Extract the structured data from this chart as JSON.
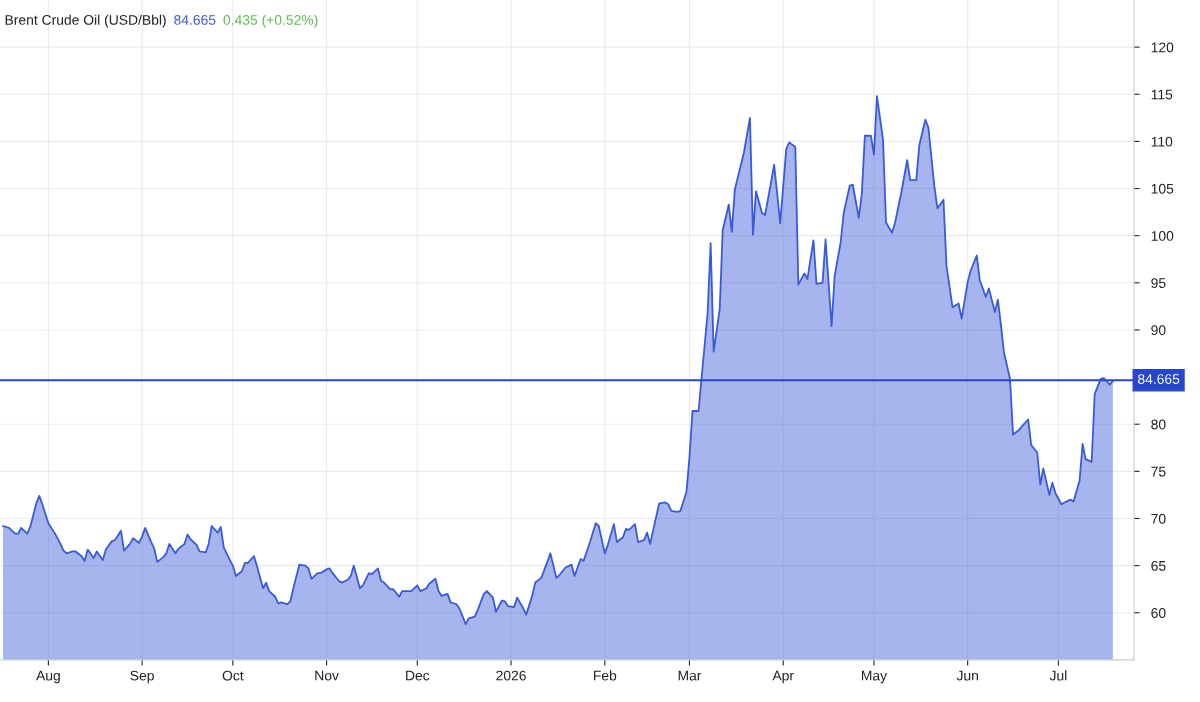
{
  "chart_data": {
    "type": "area",
    "title": "Brent Crude Oil (USD/Bbl)",
    "annotations": [
      "84.665",
      "0.435 (+0.52%)"
    ],
    "x": [
      "2025-07-17",
      "2025-07-19",
      "2025-07-21",
      "2025-07-22",
      "2025-07-23",
      "2025-07-25",
      "2025-07-26",
      "2025-07-28",
      "2025-07-29",
      "2025-07-30",
      "2025-08-01",
      "2025-08-03",
      "2025-08-05",
      "2025-08-06",
      "2025-08-07",
      "2025-08-09",
      "2025-08-10",
      "2025-08-12",
      "2025-08-13",
      "2025-08-14",
      "2025-08-16",
      "2025-08-17",
      "2025-08-19",
      "2025-08-20",
      "2025-08-22",
      "2025-08-23",
      "2025-08-25",
      "2025-08-26",
      "2025-08-28",
      "2025-08-29",
      "2025-08-31",
      "2025-09-01",
      "2025-09-02",
      "2025-09-04",
      "2025-09-05",
      "2025-09-06",
      "2025-09-08",
      "2025-09-09",
      "2025-09-10",
      "2025-09-12",
      "2025-09-13",
      "2025-09-15",
      "2025-09-16",
      "2025-09-17",
      "2025-09-19",
      "2025-09-20",
      "2025-09-22",
      "2025-09-23",
      "2025-09-24",
      "2025-09-26",
      "2025-09-27",
      "2025-09-28",
      "2025-09-30",
      "2025-10-01",
      "2025-10-02",
      "2025-10-04",
      "2025-10-05",
      "2025-10-06",
      "2025-10-08",
      "2025-10-09",
      "2025-10-11",
      "2025-10-12",
      "2025-10-13",
      "2025-10-15",
      "2025-10-16",
      "2025-10-17",
      "2025-10-19",
      "2025-10-20",
      "2025-10-21",
      "2025-10-23",
      "2025-10-25",
      "2025-10-26",
      "2025-10-27",
      "2025-10-29",
      "2025-10-30",
      "2025-11-01",
      "2025-11-02",
      "2025-11-03",
      "2025-11-05",
      "2025-11-06",
      "2025-11-08",
      "2025-11-09",
      "2025-11-10",
      "2025-11-12",
      "2025-11-13",
      "2025-11-15",
      "2025-11-16",
      "2025-11-18",
      "2025-11-19",
      "2025-11-20",
      "2025-11-22",
      "2025-11-23",
      "2025-11-25",
      "2025-11-26",
      "2025-11-28",
      "2025-11-29",
      "2025-12-01",
      "2025-12-02",
      "2025-12-04",
      "2025-12-05",
      "2025-12-07",
      "2025-12-08",
      "2025-12-09",
      "2025-12-11",
      "2025-12-12",
      "2025-12-14",
      "2025-12-15",
      "2025-12-17",
      "2025-12-18",
      "2025-12-20",
      "2025-12-21",
      "2025-12-23",
      "2025-12-24",
      "2025-12-26",
      "2025-12-27",
      "2025-12-29",
      "2025-12-30",
      "2025-12-31",
      "2026-01-02",
      "2026-01-03",
      "2026-01-05",
      "2026-01-06",
      "2026-01-08",
      "2026-01-09",
      "2026-01-11",
      "2026-01-13",
      "2026-01-14",
      "2026-01-16",
      "2026-01-17",
      "2026-01-19",
      "2026-01-21",
      "2026-01-22",
      "2026-01-24",
      "2026-01-25",
      "2026-01-27",
      "2026-01-29",
      "2026-01-30",
      "2026-02-01",
      "2026-02-02",
      "2026-02-04",
      "2026-02-05",
      "2026-02-07",
      "2026-02-08",
      "2026-02-09",
      "2026-02-11",
      "2026-02-12",
      "2026-02-14",
      "2026-02-15",
      "2026-02-16",
      "2026-02-18",
      "2026-02-19",
      "2026-02-21",
      "2026-02-22",
      "2026-02-23",
      "2026-02-25",
      "2026-02-26",
      "2026-02-28",
      "2026-03-01",
      "2026-03-02",
      "2026-03-04",
      "2026-03-05",
      "2026-03-07",
      "2026-03-08",
      "2026-03-09",
      "2026-03-11",
      "2026-03-12",
      "2026-03-14",
      "2026-03-15",
      "2026-03-16",
      "2026-03-18",
      "2026-03-19",
      "2026-03-21",
      "2026-03-22",
      "2026-03-23",
      "2026-03-25",
      "2026-03-26",
      "2026-03-28",
      "2026-03-29",
      "2026-03-30",
      "2026-03-31",
      "2026-04-02",
      "2026-04-03",
      "2026-04-05",
      "2026-04-06",
      "2026-04-08",
      "2026-04-09",
      "2026-04-11",
      "2026-04-12",
      "2026-04-14",
      "2026-04-15",
      "2026-04-17",
      "2026-04-18",
      "2026-04-20",
      "2026-04-21",
      "2026-04-23",
      "2026-04-24",
      "2026-04-26",
      "2026-04-27",
      "2026-04-28",
      "2026-04-30",
      "2026-05-01",
      "2026-05-02",
      "2026-05-04",
      "2026-05-05",
      "2026-05-07",
      "2026-05-08",
      "2026-05-10",
      "2026-05-12",
      "2026-05-13",
      "2026-05-15",
      "2026-05-16",
      "2026-05-18",
      "2026-05-19",
      "2026-05-21",
      "2026-05-22",
      "2026-05-24",
      "2026-05-25",
      "2026-05-27",
      "2026-05-29",
      "2026-05-30",
      "2026-06-01",
      "2026-06-02",
      "2026-06-04",
      "2026-06-05",
      "2026-06-07",
      "2026-06-08",
      "2026-06-10",
      "2026-06-11",
      "2026-06-12",
      "2026-06-13",
      "2026-06-15",
      "2026-06-16",
      "2026-06-18",
      "2026-06-19",
      "2026-06-21",
      "2026-06-22",
      "2026-06-24",
      "2026-06-25",
      "2026-06-26",
      "2026-06-28",
      "2026-06-29",
      "2026-06-30",
      "2026-07-02",
      "2026-07-03",
      "2026-07-05",
      "2026-07-06",
      "2026-07-08",
      "2026-07-09",
      "2026-07-10",
      "2026-07-12",
      "2026-07-13",
      "2026-07-15",
      "2026-07-16",
      "2026-07-18",
      "2026-07-19"
    ],
    "series": [
      {
        "color": "#3a5bd9",
        "values": [
          69.2,
          69.0,
          68.4,
          68.4,
          69.0,
          68.4,
          69.1,
          71.6,
          72.4,
          71.5,
          69.5,
          68.5,
          67.3,
          66.6,
          66.3,
          66.5,
          66.5,
          66.0,
          65.5,
          66.7,
          65.8,
          66.5,
          65.6,
          66.7,
          67.6,
          67.7,
          68.7,
          66.6,
          67.3,
          67.9,
          67.4,
          68.1,
          69.0,
          67.5,
          66.8,
          65.4,
          65.9,
          66.3,
          67.3,
          66.3,
          66.8,
          67.3,
          68.3,
          67.8,
          67.2,
          66.5,
          66.4,
          67.3,
          69.2,
          68.5,
          69.1,
          66.9,
          65.6,
          65.0,
          63.9,
          64.4,
          65.3,
          65.3,
          66.0,
          64.9,
          62.6,
          63.2,
          62.3,
          61.7,
          61.0,
          61.1,
          60.9,
          61.2,
          62.6,
          65.1,
          65.0,
          64.7,
          63.6,
          64.2,
          64.2,
          64.6,
          64.7,
          64.2,
          63.4,
          63.2,
          63.5,
          63.9,
          65.0,
          62.6,
          62.9,
          64.2,
          64.1,
          64.7,
          63.4,
          63.2,
          62.5,
          62.5,
          61.7,
          62.3,
          62.3,
          62.3,
          62.9,
          62.3,
          62.6,
          63.1,
          63.6,
          62.3,
          61.8,
          62.0,
          61.1,
          60.9,
          60.4,
          58.8,
          59.4,
          59.6,
          60.3,
          62.0,
          62.3,
          61.6,
          60.1,
          61.3,
          61.2,
          60.7,
          60.6,
          61.6,
          60.5,
          59.8,
          61.8,
          63.2,
          63.7,
          65.4,
          66.3,
          63.7,
          64.0,
          64.8,
          65.1,
          63.9,
          65.7,
          65.5,
          67.4,
          69.5,
          69.2,
          66.3,
          67.2,
          69.4,
          67.5,
          68.0,
          68.9,
          68.8,
          69.4,
          67.5,
          67.7,
          68.5,
          67.3,
          70.2,
          71.6,
          71.7,
          71.5,
          70.8,
          70.7,
          70.8,
          72.8,
          76.5,
          81.4,
          81.4,
          84.9,
          91.8,
          99.2,
          87.7,
          92.2,
          100.6,
          103.3,
          100.4,
          104.9,
          107.5,
          108.8,
          112.5,
          100.1,
          104.7,
          102.4,
          102.2,
          105.7,
          107.5,
          104.5,
          101.3,
          109.2,
          109.9,
          109.4,
          94.8,
          96.0,
          95.4,
          99.5,
          94.9,
          95.0,
          99.6,
          90.4,
          95.7,
          99.3,
          102.4,
          105.3,
          105.4,
          101.9,
          104.5,
          110.6,
          110.6,
          108.6,
          114.8,
          110.2,
          101.4,
          100.3,
          101.4,
          104.5,
          108.0,
          105.9,
          105.9,
          109.6,
          112.3,
          111.5,
          105.2,
          102.9,
          103.8,
          96.8,
          92.4,
          92.8,
          91.2,
          95.1,
          96.3,
          97.9,
          95.3,
          93.5,
          94.4,
          91.9,
          93.2,
          90.5,
          87.6,
          84.8,
          78.9,
          79.4,
          79.8,
          80.5,
          77.8,
          77.0,
          73.6,
          75.3,
          72.5,
          73.8,
          72.7,
          71.5,
          71.7,
          72.0,
          71.8,
          74.0,
          77.9,
          76.3,
          76.0,
          83.2,
          84.8,
          84.9,
          84.2,
          84.6
        ]
      }
    ],
    "xlim": [
      "2025-07-16",
      "2026-07-26"
    ],
    "xticks": [
      {
        "value": "2025-08-01",
        "label": "Aug"
      },
      {
        "value": "2025-09-01",
        "label": "Sep"
      },
      {
        "value": "2025-10-01",
        "label": "Oct"
      },
      {
        "value": "2025-11-01",
        "label": "Nov"
      },
      {
        "value": "2025-12-01",
        "label": "Dec"
      },
      {
        "value": "2026-01-01",
        "label": "2026"
      },
      {
        "value": "2026-02-01",
        "label": "Feb"
      },
      {
        "value": "2026-03-01",
        "label": "Mar"
      },
      {
        "value": "2026-04-01",
        "label": "Apr"
      },
      {
        "value": "2026-05-01",
        "label": "May"
      },
      {
        "value": "2026-06-01",
        "label": "Jun"
      },
      {
        "value": "2026-07-01",
        "label": "Jul"
      }
    ],
    "ylim": [
      55,
      125
    ],
    "yticks": [
      60,
      65,
      70,
      75,
      80,
      90,
      95,
      100,
      105,
      110,
      115,
      120
    ],
    "ref_lines": [
      {
        "axis": "y",
        "value": 84.665,
        "label": "84.665",
        "color": "#2746c9"
      }
    ],
    "grid": true
  }
}
